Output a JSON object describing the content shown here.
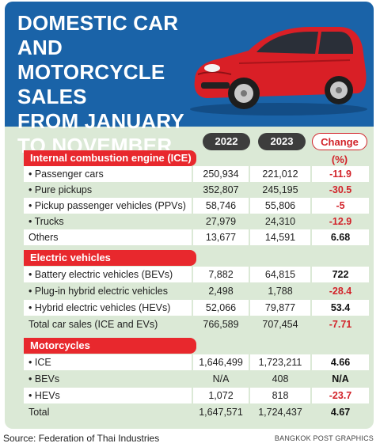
{
  "title_lines": [
    "DOMESTIC CAR AND",
    "MOTORCYCLE SALES",
    "FROM JANUARY",
    "TO NOVEMBER"
  ],
  "columns": [
    "2022",
    "2023",
    "Change (%)"
  ],
  "colors": {
    "header_blue": "#1a63a8",
    "accent_red": "#e8282d",
    "background_green": "#dbe9d6"
  },
  "chart_data": {
    "type": "table",
    "columns": [
      "2022",
      "2023",
      "Change (%)"
    ],
    "sections": [
      {
        "name": "Internal combustion engine (ICE) cars",
        "rows": [
          {
            "label": "• Passenger cars",
            "v2022": "250,934",
            "v2023": "221,012",
            "change": "-11.9"
          },
          {
            "label": "• Pure pickups",
            "v2022": "352,807",
            "v2023": "245,195",
            "change": "-30.5"
          },
          {
            "label": "• Pickup passenger vehicles (PPVs)",
            "v2022": "58,746",
            "v2023": "55,806",
            "change": "-5"
          },
          {
            "label": "• Trucks",
            "v2022": "27,979",
            "v2023": "24,310",
            "change": "-12.9"
          },
          {
            "label": "Others",
            "v2022": "13,677",
            "v2023": "14,591",
            "change": "6.68"
          }
        ]
      },
      {
        "name": "Electric vehicles",
        "rows": [
          {
            "label": "• Battery electric vehicles (BEVs)",
            "v2022": "7,882",
            "v2023": "64,815",
            "change": "722"
          },
          {
            "label": "• Plug-in hybrid electric vehicles (PHEVs)",
            "v2022": "2,498",
            "v2023": "1,788",
            "change": "-28.4"
          },
          {
            "label": "• Hybrid electric vehicles (HEVs)",
            "v2022": "52,066",
            "v2023": "79,877",
            "change": "53.4"
          },
          {
            "label": "Total car sales (ICE and EVs)",
            "v2022": "766,589",
            "v2023": "707,454",
            "change": "-7.71"
          }
        ]
      },
      {
        "name": "Motorcycles",
        "rows": [
          {
            "label": "• ICE",
            "v2022": "1,646,499",
            "v2023": "1,723,211",
            "change": "4.66"
          },
          {
            "label": "• BEVs",
            "v2022": "N/A",
            "v2023": "408",
            "change": "N/A"
          },
          {
            "label": "• HEVs",
            "v2022": "1,072",
            "v2023": "818",
            "change": "-23.7"
          },
          {
            "label": "Total",
            "v2022": "1,647,571",
            "v2023": "1,724,437",
            "change": "4.67"
          }
        ]
      }
    ]
  },
  "source": "Source: Federation of Thai Industries",
  "credit": "BANGKOK POST GRAPHICS"
}
